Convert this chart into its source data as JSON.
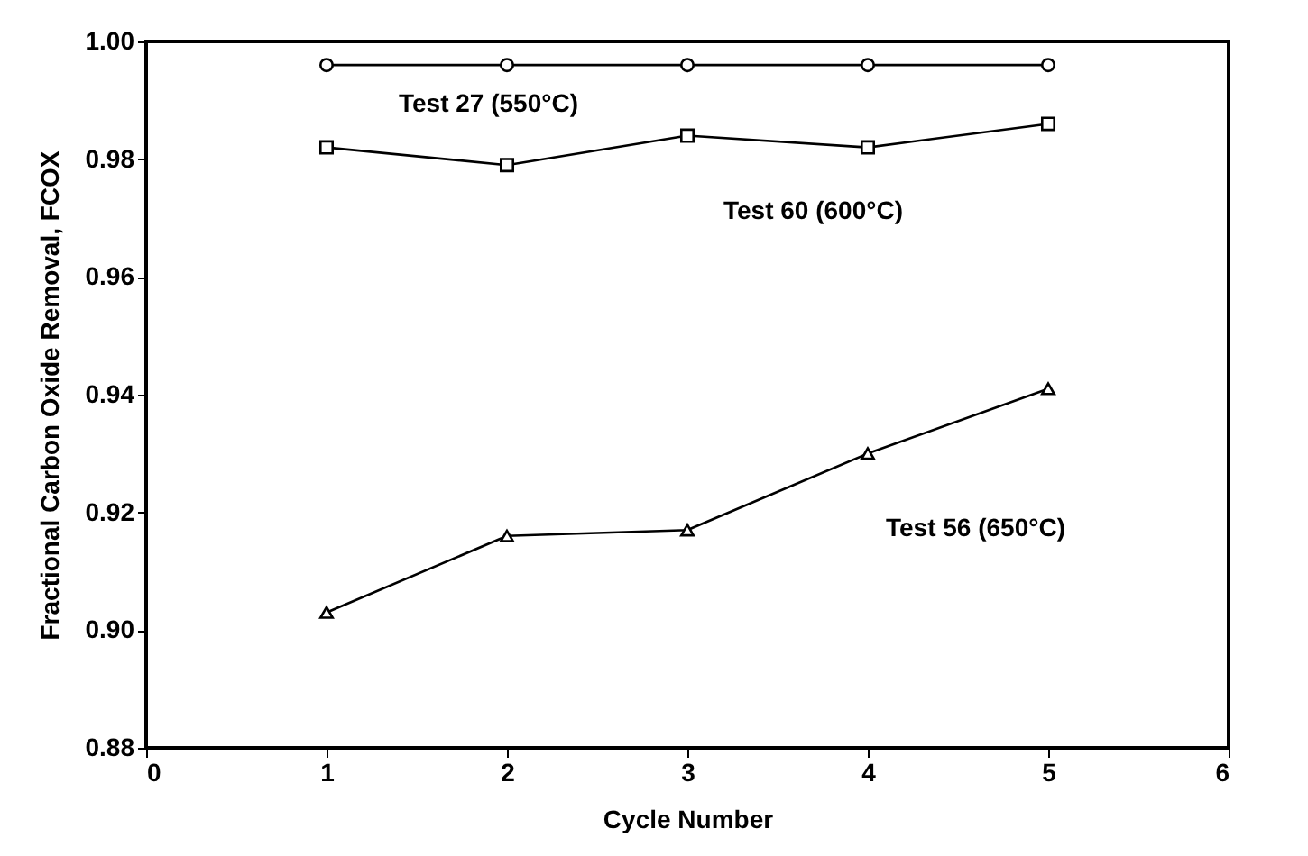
{
  "chart_data": {
    "type": "line",
    "xlabel": "Cycle Number",
    "ylabel": "Fractional Carbon Oxide Removal, FCOX",
    "x": [
      1,
      2,
      3,
      4,
      5
    ],
    "series": [
      {
        "name": "Test 27 (550°C)",
        "color": "#000000",
        "marker": "circle",
        "values": [
          0.996,
          0.996,
          0.996,
          0.996,
          0.996
        ]
      },
      {
        "name": "Test 60 (600°C)",
        "color": "#000000",
        "marker": "square",
        "values": [
          0.982,
          0.979,
          0.984,
          0.982,
          0.986
        ]
      },
      {
        "name": "Test 56 (650°C)",
        "color": "#000000",
        "marker": "triangle",
        "values": [
          0.903,
          0.916,
          0.917,
          0.93,
          0.941
        ]
      }
    ],
    "xlim": [
      0,
      6
    ],
    "xticks": [
      0,
      1,
      2,
      3,
      4,
      5,
      6
    ],
    "ylim": [
      0.88,
      1.0
    ],
    "yticks": [
      {
        "value": 0.88,
        "label": "0.88"
      },
      {
        "value": 0.9,
        "label": "0.90"
      },
      {
        "value": 0.92,
        "label": "0.92"
      },
      {
        "value": 0.94,
        "label": "0.94"
      },
      {
        "value": 0.96,
        "label": "0.96"
      },
      {
        "value": 0.98,
        "label": "0.98"
      },
      {
        "value": 1.0,
        "label": "1.00"
      }
    ],
    "grid": false,
    "line_style": "solid"
  }
}
